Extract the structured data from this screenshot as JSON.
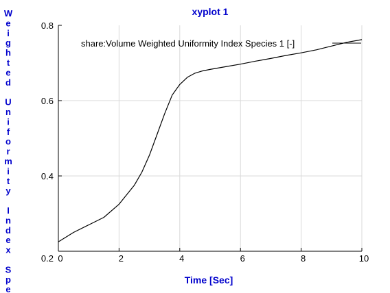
{
  "chart_data": {
    "type": "line",
    "title": "xyplot 1",
    "xlabel": "Time [Sec]",
    "ylabel": "Weighted Uniformity Index Spec",
    "xlim": [
      0,
      10
    ],
    "ylim": [
      0.2,
      0.8
    ],
    "xticks": [
      "0",
      "2",
      "4",
      "6",
      "8",
      "10"
    ],
    "yticks": [
      "0.2",
      "0.4",
      "0.6",
      "0.8"
    ],
    "grid": true,
    "legend_position": "top",
    "series": [
      {
        "name": "share:Volume Weighted Uniformity Index Species 1 [-]",
        "color": "#000000",
        "x": [
          0,
          0.5,
          1,
          1.5,
          2,
          2.5,
          2.75,
          3,
          3.25,
          3.5,
          3.75,
          4,
          4.25,
          4.5,
          4.75,
          5,
          5.5,
          6,
          6.5,
          7,
          7.5,
          8,
          8.5,
          9,
          9.5,
          10
        ],
        "y": [
          0.225,
          0.25,
          0.27,
          0.29,
          0.325,
          0.375,
          0.41,
          0.455,
          0.51,
          0.565,
          0.615,
          0.643,
          0.662,
          0.673,
          0.679,
          0.683,
          0.69,
          0.697,
          0.705,
          0.712,
          0.72,
          0.727,
          0.735,
          0.745,
          0.755,
          0.762
        ]
      }
    ]
  },
  "colors": {
    "title": "#0000cc",
    "axis_labels": "#0000cc",
    "grid": "#d9d9d9"
  }
}
